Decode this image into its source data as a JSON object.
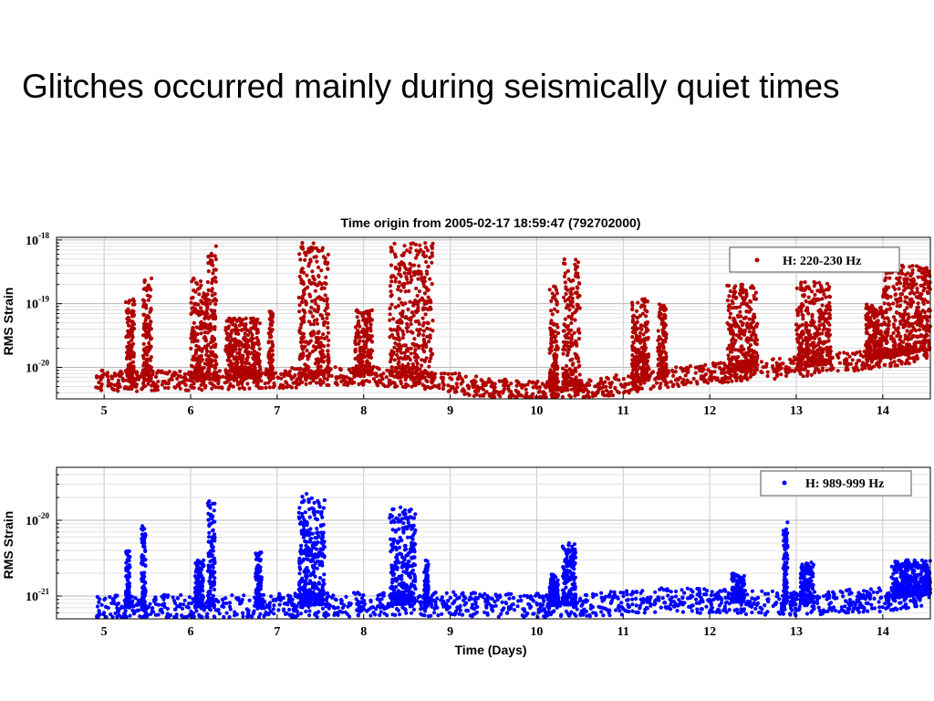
{
  "slide": {
    "title": "Glitches occurred mainly during seismically quiet times"
  },
  "chart_data": [
    {
      "type": "scatter",
      "title": "Time origin from 2005-02-17 18:59:47 (792702000)",
      "xlabel": "",
      "ylabel": "RMS Strain",
      "xlim": [
        4.45,
        14.55
      ],
      "ylim": [
        3.2e-21,
        1.1e-18
      ],
      "yscale": "log",
      "xticks": [
        5,
        6,
        7,
        8,
        9,
        10,
        11,
        12,
        13,
        14
      ],
      "yticks": [
        {
          "base": "10",
          "exp": "-18",
          "value": 1e-18
        },
        {
          "base": "10",
          "exp": "-19",
          "value": 1e-19
        },
        {
          "base": "10",
          "exp": "-20",
          "value": 1e-20
        }
      ],
      "grid": true,
      "legend_position": "top-right",
      "series": [
        {
          "name": "H: 220-230 Hz",
          "color": "#b00000",
          "x_range": [
            4.9,
            14.55
          ],
          "baseline": [
            [
              4.9,
              6.2e-21
            ],
            [
              5.5,
              6e-21
            ],
            [
              6.0,
              6.3e-21
            ],
            [
              7.0,
              6.8e-21
            ],
            [
              8.0,
              7.5e-21
            ],
            [
              8.8,
              6.5e-21
            ],
            [
              9.5,
              4.5e-21
            ],
            [
              10.0,
              4.3e-21
            ],
            [
              10.6,
              4.5e-21
            ],
            [
              11.0,
              5.5e-21
            ],
            [
              11.5,
              7e-21
            ],
            [
              12.0,
              8e-21
            ],
            [
              13.0,
              1e-20
            ],
            [
              13.5,
              1.2e-20
            ],
            [
              14.0,
              1.4e-20
            ],
            [
              14.55,
              1.9e-20
            ]
          ],
          "bursts": [
            [
              5.25,
              5.35,
              1.2e-19
            ],
            [
              5.45,
              5.55,
              2.5e-19
            ],
            [
              6.0,
              6.2,
              2.5e-19
            ],
            [
              6.2,
              6.3,
              8e-19
            ],
            [
              6.4,
              6.8,
              6e-20
            ],
            [
              6.9,
              6.95,
              8e-20
            ],
            [
              7.25,
              7.6,
              9e-19
            ],
            [
              7.9,
              8.1,
              8e-20
            ],
            [
              8.3,
              8.8,
              9e-19
            ],
            [
              10.15,
              10.25,
              2e-19
            ],
            [
              10.3,
              10.5,
              5e-19
            ],
            [
              11.1,
              11.3,
              1.2e-19
            ],
            [
              11.4,
              11.5,
              1e-19
            ],
            [
              12.2,
              12.55,
              2e-19
            ],
            [
              13.0,
              13.4,
              2.2e-19
            ],
            [
              13.8,
              14.0,
              1e-19
            ],
            [
              14.0,
              14.55,
              4e-19
            ]
          ]
        }
      ]
    },
    {
      "type": "scatter",
      "title": "",
      "xlabel": "Time (Days)",
      "ylabel": "RMS Strain",
      "xlim": [
        4.45,
        14.55
      ],
      "ylim": [
        5e-22,
        5e-20
      ],
      "yscale": "log",
      "xticks": [
        5,
        6,
        7,
        8,
        9,
        10,
        11,
        12,
        13,
        14
      ],
      "yticks": [
        {
          "base": "10",
          "exp": "-20",
          "value": 1e-20
        },
        {
          "base": "10",
          "exp": "-21",
          "value": 1e-21
        }
      ],
      "grid": true,
      "legend_position": "top-right",
      "series": [
        {
          "name": "H: 989-999 Hz",
          "color": "#0000ff",
          "x_range": [
            4.9,
            14.55
          ],
          "baseline": [
            [
              4.9,
              7e-22
            ],
            [
              6.0,
              7.2e-22
            ],
            [
              7.0,
              7.5e-22
            ],
            [
              8.0,
              7.8e-22
            ],
            [
              9.0,
              7.8e-22
            ],
            [
              10.0,
              7.5e-22
            ],
            [
              11.0,
              8e-22
            ],
            [
              11.5,
              9e-22
            ],
            [
              12.0,
              8.5e-22
            ],
            [
              13.0,
              8e-22
            ],
            [
              14.0,
              9e-22
            ],
            [
              14.55,
              1.1e-21
            ]
          ],
          "bursts": [
            [
              5.25,
              5.3,
              4e-21
            ],
            [
              5.43,
              5.48,
              1e-20
            ],
            [
              6.05,
              6.15,
              3e-21
            ],
            [
              6.2,
              6.28,
              1.8e-20
            ],
            [
              6.75,
              6.82,
              4e-21
            ],
            [
              7.25,
              7.35,
              2.5e-20
            ],
            [
              7.35,
              7.55,
              2e-20
            ],
            [
              8.3,
              8.6,
              1.5e-20
            ],
            [
              8.7,
              8.75,
              3e-21
            ],
            [
              10.15,
              10.25,
              2e-21
            ],
            [
              10.3,
              10.45,
              5e-21
            ],
            [
              12.25,
              12.4,
              2e-21
            ],
            [
              12.85,
              12.9,
              1e-20
            ],
            [
              13.05,
              13.2,
              3e-21
            ],
            [
              14.1,
              14.55,
              3e-21
            ]
          ]
        }
      ]
    }
  ]
}
